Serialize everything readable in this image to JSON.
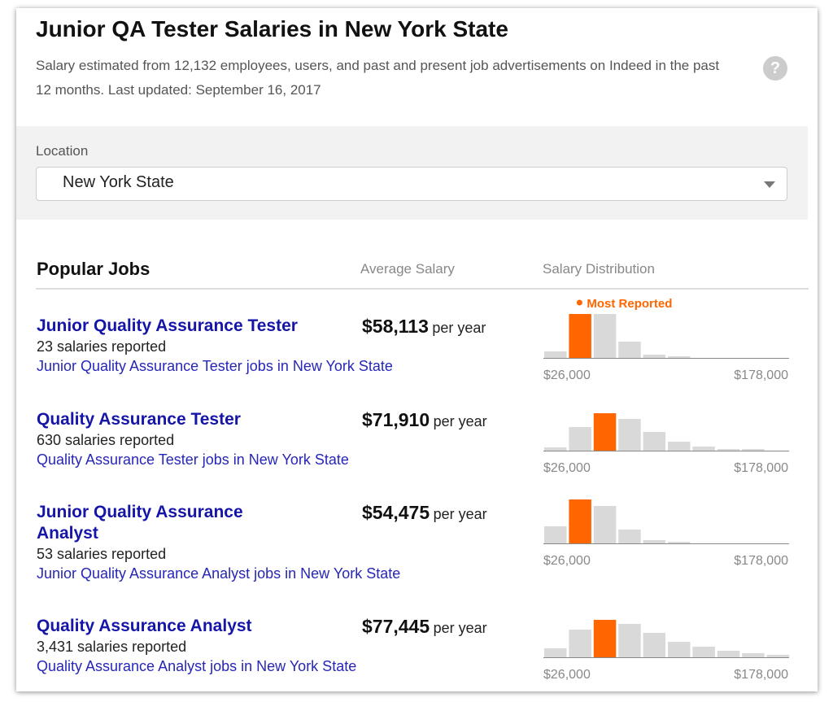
{
  "header": {
    "title": "Junior QA Tester Salaries in New York State",
    "subtitle": "Salary estimated from 12,132 employees, users, and past and present job advertisements on Indeed in the past 12 months. Last updated: September 16, 2017",
    "help_icon": "?"
  },
  "location": {
    "label": "Location",
    "value": "New York State"
  },
  "jobs_table": {
    "title": "Popular Jobs",
    "columns": [
      "Average Salary",
      "Salary Distribution"
    ],
    "most_reported": "Most Reported",
    "rows": [
      {
        "title": "Junior Quality Assurance Tester",
        "salaries_reported": "23 salaries reported",
        "jobs_link": "Junior Quality Assurance Tester jobs in New York State",
        "salary": "$58,113",
        "per": "per year",
        "histogram": {
          "values": [
            8,
            54,
            54,
            20,
            4,
            2,
            0,
            0,
            0,
            0
          ],
          "highlight": 1,
          "min_label": "$26,000",
          "max_label": "$178,000"
        }
      },
      {
        "title": "Quality Assurance Tester",
        "salaries_reported": "630 salaries reported",
        "jobs_link": "Quality Assurance Tester jobs in New York State",
        "salary": "$71,910",
        "per": "per year",
        "histogram": {
          "values": [
            4,
            29,
            46,
            39,
            23,
            11,
            5,
            2,
            2,
            0
          ],
          "highlight": 2,
          "min_label": "$26,000",
          "max_label": "$178,000"
        }
      },
      {
        "title": "Junior Quality Assurance Analyst",
        "salaries_reported": "53 salaries reported",
        "jobs_link": "Junior Quality Assurance Analyst jobs in New York State",
        "salary": "$54,475",
        "per": "per year",
        "histogram": {
          "values": [
            21,
            54,
            46,
            17,
            4,
            2,
            0,
            0,
            0,
            0
          ],
          "highlight": 1,
          "min_label": "$26,000",
          "max_label": "$178,000"
        }
      },
      {
        "title": "Quality Assurance Analyst",
        "salaries_reported": "3,431 salaries reported",
        "jobs_link": "Quality Assurance Analyst jobs in New York State",
        "salary": "$77,445",
        "per": "per year",
        "histogram": {
          "values": [
            11,
            34,
            46,
            41,
            30,
            19,
            13,
            8,
            5,
            3
          ],
          "highlight": 2,
          "min_label": "$26,000",
          "max_label": "$178,000"
        }
      }
    ]
  }
}
